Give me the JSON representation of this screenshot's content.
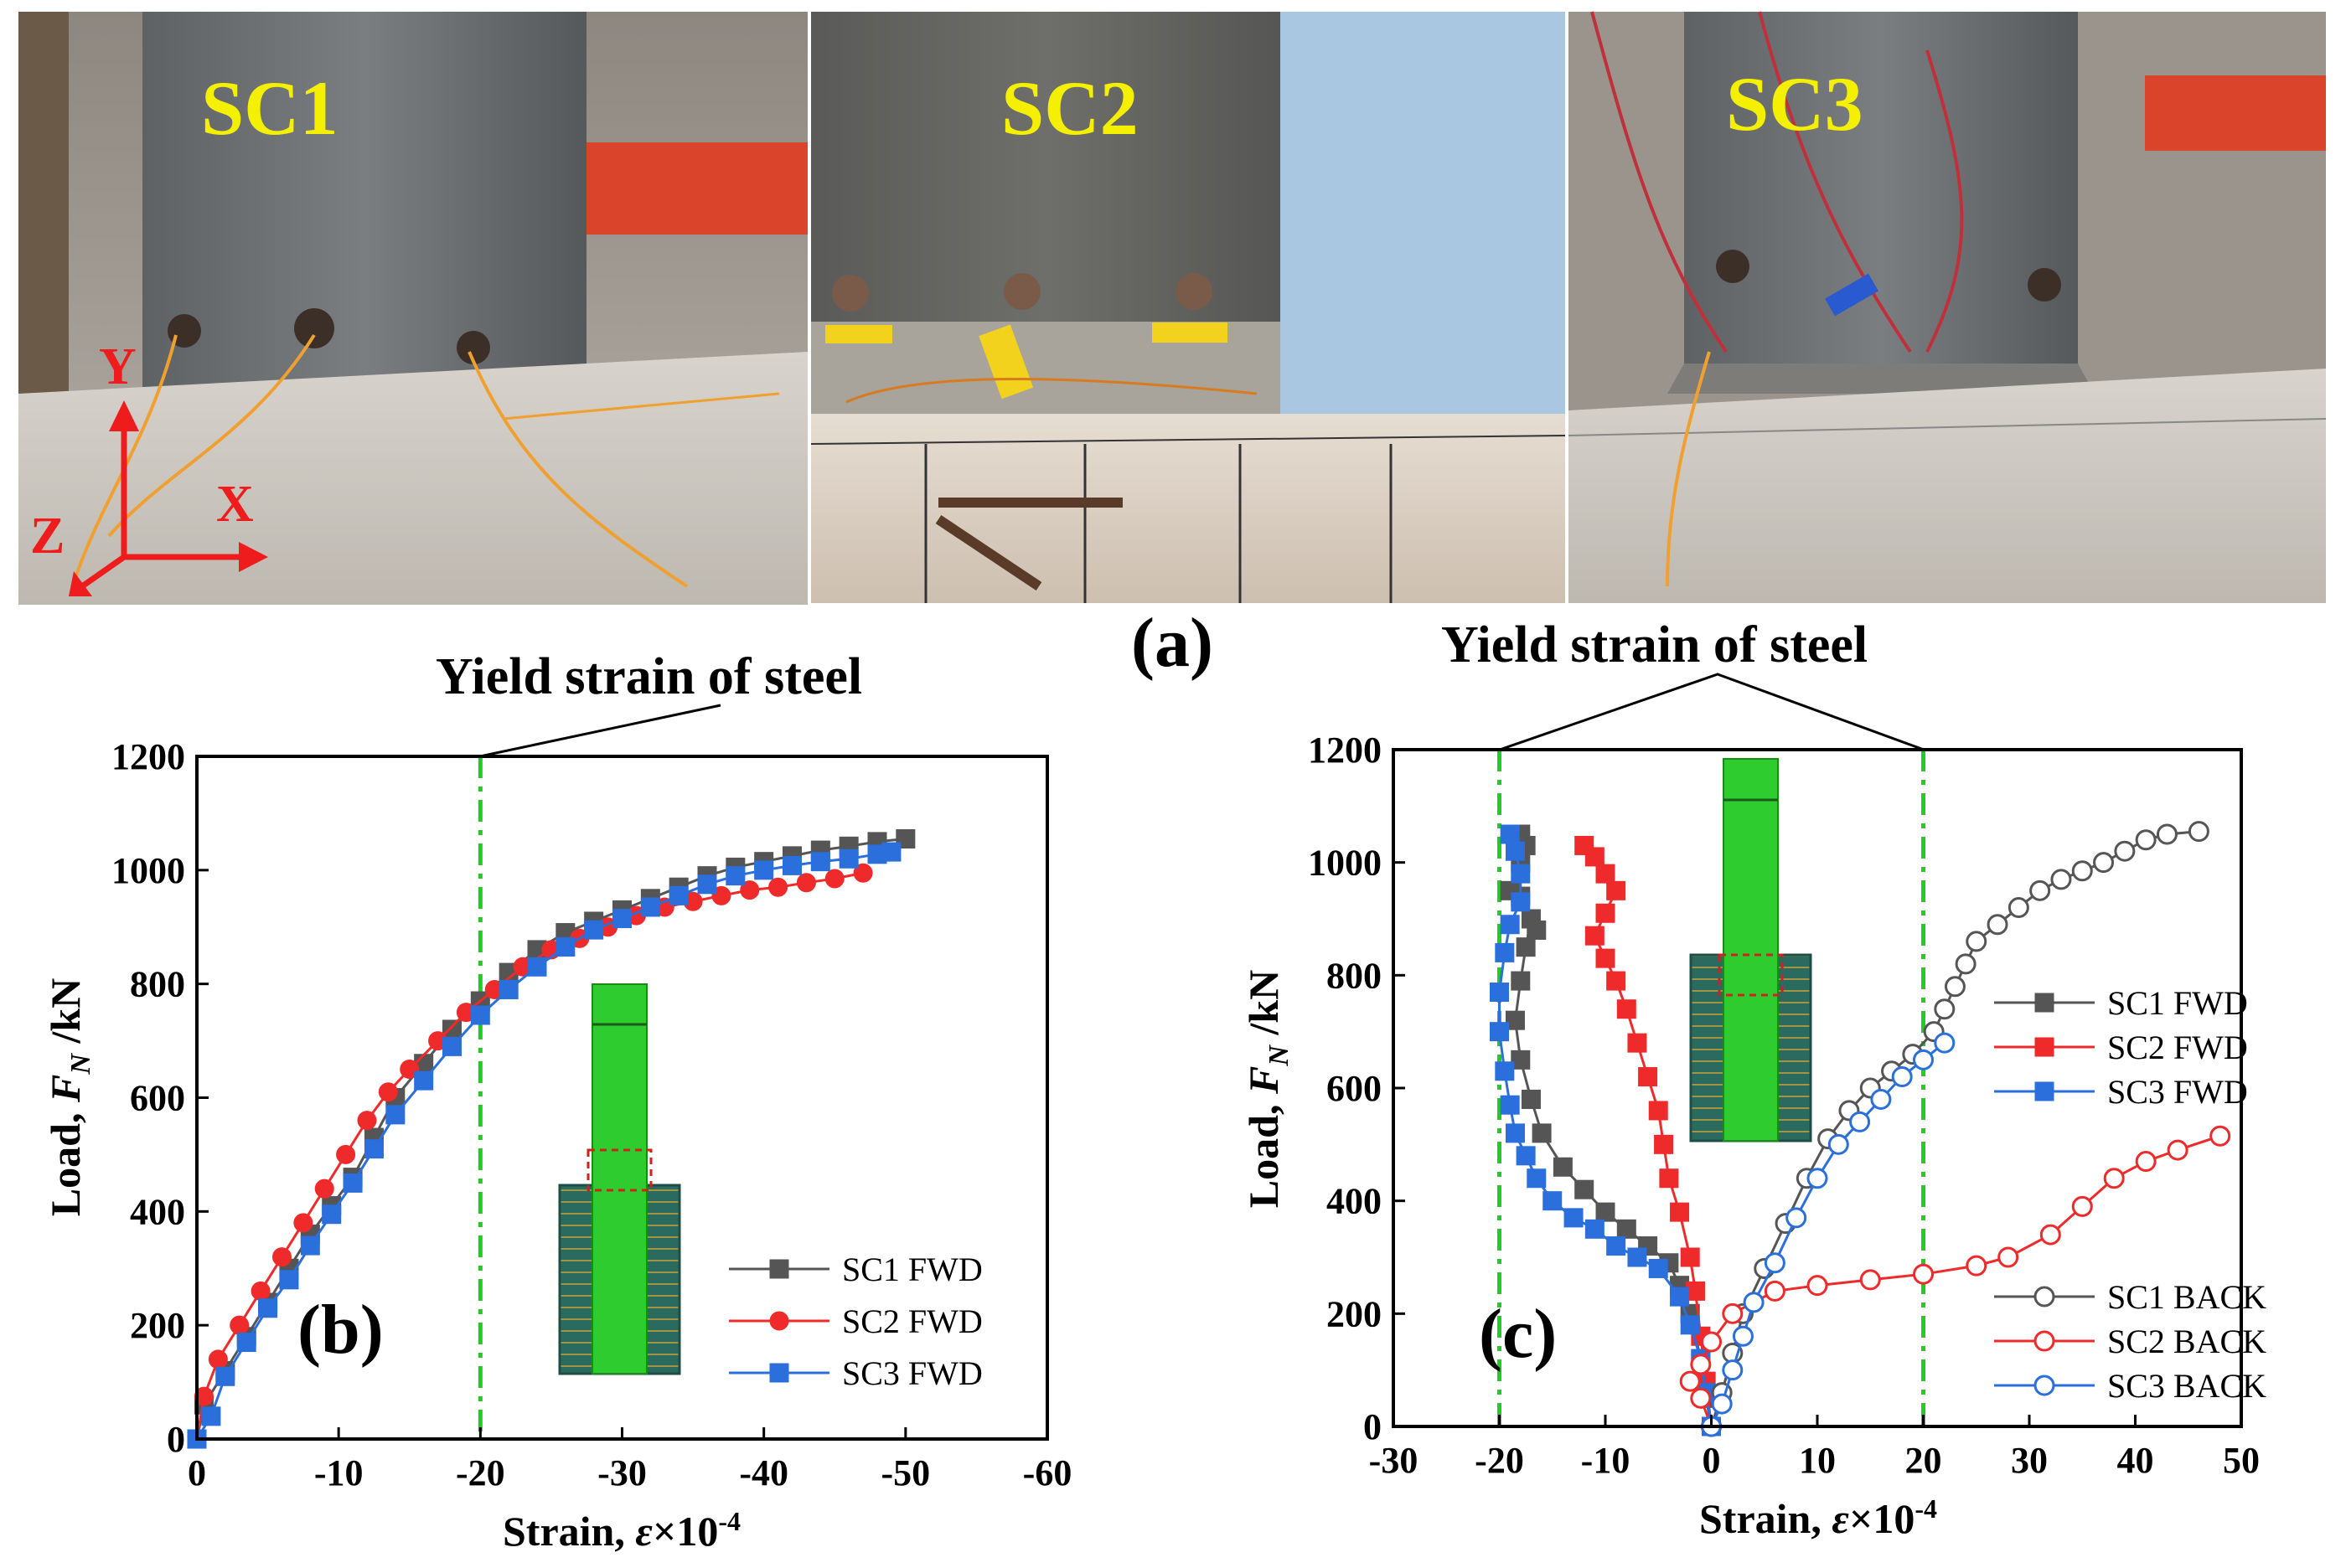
{
  "figure": {
    "caption_a": "(a)",
    "photos": [
      {
        "label": "SC1",
        "axes": {
          "y": "Y",
          "x": "X",
          "z": "Z"
        }
      },
      {
        "label": "SC2"
      },
      {
        "label": "SC3"
      }
    ]
  },
  "colors": {
    "black": "#555555",
    "red": "#ee2a2a",
    "blue": "#2a6fdb",
    "yield": "#22cc22",
    "photo_label": "#f4f000"
  },
  "chart_data": [
    {
      "type": "scatter",
      "panel": "(b)",
      "annotation": "Yield strain of steel",
      "xlabel": "Strain, ε×10⁻⁴",
      "ylabel": "Load, F_N /kN",
      "ylabel_prefix": "Load, ",
      "ylabel_var": "F",
      "ylabel_sub": "N",
      "ylabel_suffix": " /kN",
      "xlabel_prefix": "Strain, ",
      "xlabel_var": "ε",
      "xlabel_suffix": "×10",
      "xlabel_exp": "-4",
      "xlim": [
        0,
        -60
      ],
      "ylim": [
        0,
        1200
      ],
      "xticks": [
        "0",
        "-10",
        "-20",
        "-30",
        "-40",
        "-50",
        "-60"
      ],
      "yticks": [
        "0",
        "200",
        "400",
        "600",
        "800",
        "1000",
        "1200"
      ],
      "yield_lines": [
        -20
      ],
      "series": [
        {
          "name": "SC1 FWD",
          "marker": "square",
          "filled": true,
          "color": "#555555",
          "points": [
            [
              0,
              0
            ],
            [
              -0.5,
              60
            ],
            [
              -2,
              120
            ],
            [
              -3.5,
              180
            ],
            [
              -5,
              240
            ],
            [
              -6.5,
              300
            ],
            [
              -8,
              360
            ],
            [
              -9.5,
              410
            ],
            [
              -11,
              460
            ],
            [
              -12.5,
              530
            ],
            [
              -14,
              600
            ],
            [
              -16,
              660
            ],
            [
              -18,
              720
            ],
            [
              -20,
              770
            ],
            [
              -22,
              820
            ],
            [
              -24,
              860
            ],
            [
              -26,
              890
            ],
            [
              -28,
              910
            ],
            [
              -30,
              930
            ],
            [
              -32,
              950
            ],
            [
              -34,
              970
            ],
            [
              -36,
              990
            ],
            [
              -38,
              1005
            ],
            [
              -40,
              1015
            ],
            [
              -42,
              1025
            ],
            [
              -44,
              1035
            ],
            [
              -46,
              1042
            ],
            [
              -48,
              1050
            ],
            [
              -50,
              1055
            ]
          ]
        },
        {
          "name": "SC2 FWD",
          "marker": "circle",
          "filled": true,
          "color": "#ee2a2a",
          "points": [
            [
              0,
              0
            ],
            [
              -0.5,
              75
            ],
            [
              -1.5,
              140
            ],
            [
              -3,
              200
            ],
            [
              -4.5,
              260
            ],
            [
              -6,
              320
            ],
            [
              -7.5,
              380
            ],
            [
              -9,
              440
            ],
            [
              -10.5,
              500
            ],
            [
              -12,
              560
            ],
            [
              -13.5,
              610
            ],
            [
              -15,
              650
            ],
            [
              -17,
              700
            ],
            [
              -19,
              750
            ],
            [
              -21,
              790
            ],
            [
              -23,
              830
            ],
            [
              -25,
              860
            ],
            [
              -27,
              880
            ],
            [
              -29,
              900
            ],
            [
              -31,
              920
            ],
            [
              -33,
              935
            ],
            [
              -35,
              945
            ],
            [
              -37,
              955
            ],
            [
              -39,
              965
            ],
            [
              -41,
              970
            ],
            [
              -43,
              978
            ],
            [
              -45,
              985
            ],
            [
              -47,
              995
            ]
          ]
        },
        {
          "name": "SC3 FWD",
          "marker": "square",
          "filled": true,
          "color": "#2a6fdb",
          "points": [
            [
              0,
              0
            ],
            [
              -1,
              40
            ],
            [
              -2,
              110
            ],
            [
              -3.5,
              170
            ],
            [
              -5,
              230
            ],
            [
              -6.5,
              280
            ],
            [
              -8,
              340
            ],
            [
              -9.5,
              395
            ],
            [
              -11,
              450
            ],
            [
              -12.5,
              510
            ],
            [
              -14,
              570
            ],
            [
              -16,
              630
            ],
            [
              -18,
              690
            ],
            [
              -20,
              745
            ],
            [
              -22,
              790
            ],
            [
              -24,
              830
            ],
            [
              -26,
              865
            ],
            [
              -28,
              895
            ],
            [
              -30,
              915
            ],
            [
              -32,
              935
            ],
            [
              -34,
              955
            ],
            [
              -36,
              975
            ],
            [
              -38,
              990
            ],
            [
              -40,
              1000
            ],
            [
              -42,
              1008
            ],
            [
              -44,
              1015
            ],
            [
              -46,
              1020
            ],
            [
              -48,
              1028
            ],
            [
              -49,
              1032
            ]
          ]
        }
      ],
      "legend": [
        "SC1 FWD",
        "SC2 FWD",
        "SC3 FWD"
      ]
    },
    {
      "type": "scatter",
      "panel": "(c)",
      "annotation": "Yield strain of steel",
      "xlabel": "Strain, ε×10⁻⁴",
      "ylabel": "Load, F_N /kN",
      "ylabel_prefix": "Load, ",
      "ylabel_var": "F",
      "ylabel_sub": "N",
      "ylabel_suffix": " /kN",
      "xlabel_prefix": "Strain, ",
      "xlabel_var": "ε",
      "xlabel_suffix": "×10",
      "xlabel_exp": "-4",
      "xlim": [
        -30,
        50
      ],
      "ylim": [
        0,
        1200
      ],
      "xticks": [
        "-30",
        "-20",
        "-10",
        "0",
        "10",
        "20",
        "30",
        "40",
        "50"
      ],
      "yticks": [
        "0",
        "200",
        "400",
        "600",
        "800",
        "1000",
        "1200"
      ],
      "yield_lines": [
        -20,
        20
      ],
      "series": [
        {
          "name": "SC1 FWD",
          "marker": "square",
          "filled": true,
          "color": "#555555",
          "points": [
            [
              0,
              0
            ],
            [
              -0.5,
              50
            ],
            [
              -1,
              120
            ],
            [
              -2,
              200
            ],
            [
              -3,
              250
            ],
            [
              -4,
              290
            ],
            [
              -6,
              320
            ],
            [
              -8,
              350
            ],
            [
              -10,
              380
            ],
            [
              -12,
              420
            ],
            [
              -14,
              460
            ],
            [
              -16,
              520
            ],
            [
              -17,
              580
            ],
            [
              -18,
              650
            ],
            [
              -18.5,
              720
            ],
            [
              -18,
              790
            ],
            [
              -17.5,
              850
            ],
            [
              -17,
              900
            ],
            [
              -16.5,
              880
            ],
            [
              -18,
              940
            ],
            [
              -19,
              950
            ],
            [
              -18,
              1000
            ],
            [
              -17.5,
              1030
            ],
            [
              -18,
              1050
            ]
          ]
        },
        {
          "name": "SC2 FWD",
          "marker": "square",
          "filled": true,
          "color": "#ee2a2a",
          "points": [
            [
              0,
              0
            ],
            [
              -0.5,
              80
            ],
            [
              -1,
              160
            ],
            [
              -1.5,
              240
            ],
            [
              -2,
              300
            ],
            [
              -3,
              380
            ],
            [
              -4,
              440
            ],
            [
              -4.5,
              500
            ],
            [
              -5,
              560
            ],
            [
              -6,
              620
            ],
            [
              -7,
              680
            ],
            [
              -8,
              740
            ],
            [
              -9,
              790
            ],
            [
              -10,
              830
            ],
            [
              -11,
              870
            ],
            [
              -10,
              910
            ],
            [
              -9,
              950
            ],
            [
              -10,
              980
            ],
            [
              -11,
              1010
            ],
            [
              -12,
              1030
            ]
          ]
        },
        {
          "name": "SC3 FWD",
          "marker": "square",
          "filled": true,
          "color": "#2a6fdb",
          "points": [
            [
              0,
              0
            ],
            [
              -0.5,
              60
            ],
            [
              -1,
              120
            ],
            [
              -2,
              180
            ],
            [
              -3,
              230
            ],
            [
              -5,
              280
            ],
            [
              -7,
              300
            ],
            [
              -9,
              320
            ],
            [
              -11,
              350
            ],
            [
              -13,
              370
            ],
            [
              -15,
              400
            ],
            [
              -16.5,
              440
            ],
            [
              -17.5,
              480
            ],
            [
              -18.5,
              520
            ],
            [
              -19,
              570
            ],
            [
              -19.5,
              630
            ],
            [
              -20,
              700
            ],
            [
              -20,
              770
            ],
            [
              -19.5,
              840
            ],
            [
              -19,
              890
            ],
            [
              -18,
              930
            ],
            [
              -18,
              980
            ],
            [
              -18.5,
              1020
            ],
            [
              -19,
              1050
            ]
          ]
        },
        {
          "name": "SC1 BACK",
          "marker": "circle",
          "filled": false,
          "color": "#555555",
          "points": [
            [
              0,
              0
            ],
            [
              1,
              60
            ],
            [
              2,
              130
            ],
            [
              3,
              200
            ],
            [
              5,
              280
            ],
            [
              7,
              360
            ],
            [
              9,
              440
            ],
            [
              11,
              510
            ],
            [
              13,
              560
            ],
            [
              15,
              600
            ],
            [
              17,
              630
            ],
            [
              19,
              660
            ],
            [
              21,
              700
            ],
            [
              22,
              740
            ],
            [
              23,
              780
            ],
            [
              24,
              820
            ],
            [
              25,
              860
            ],
            [
              27,
              890
            ],
            [
              29,
              920
            ],
            [
              31,
              950
            ],
            [
              33,
              970
            ],
            [
              35,
              985
            ],
            [
              37,
              1000
            ],
            [
              39,
              1020
            ],
            [
              41,
              1040
            ],
            [
              43,
              1050
            ],
            [
              46,
              1055
            ]
          ]
        },
        {
          "name": "SC2 BACK",
          "marker": "circle",
          "filled": false,
          "color": "#ee2a2a",
          "points": [
            [
              0,
              0
            ],
            [
              -1,
              50
            ],
            [
              -2,
              80
            ],
            [
              -1,
              110
            ],
            [
              0,
              150
            ],
            [
              2,
              200
            ],
            [
              6,
              240
            ],
            [
              10,
              250
            ],
            [
              15,
              260
            ],
            [
              20,
              270
            ],
            [
              25,
              285
            ],
            [
              28,
              300
            ],
            [
              32,
              340
            ],
            [
              35,
              390
            ],
            [
              38,
              440
            ],
            [
              41,
              470
            ],
            [
              44,
              490
            ],
            [
              48,
              515
            ]
          ]
        },
        {
          "name": "SC3 BACK",
          "marker": "circle",
          "filled": false,
          "color": "#2a6fdb",
          "points": [
            [
              0,
              0
            ],
            [
              1,
              40
            ],
            [
              2,
              100
            ],
            [
              3,
              160
            ],
            [
              4,
              220
            ],
            [
              6,
              290
            ],
            [
              8,
              370
            ],
            [
              10,
              440
            ],
            [
              12,
              500
            ],
            [
              14,
              540
            ],
            [
              16,
              580
            ],
            [
              18,
              620
            ],
            [
              20,
              650
            ],
            [
              22,
              680
            ]
          ]
        }
      ],
      "legend": [
        "SC1 FWD",
        "SC2 FWD",
        "SC3 FWD",
        "SC1 BACK",
        "SC2 BACK",
        "SC3 BACK"
      ]
    }
  ]
}
